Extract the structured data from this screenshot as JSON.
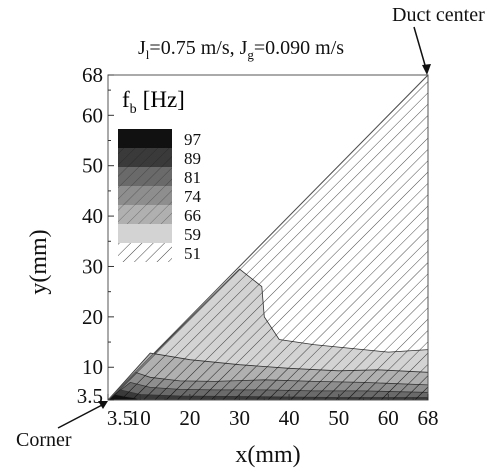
{
  "chart_data": {
    "type": "heatmap",
    "title": {
      "parts": [
        {
          "text": "J",
          "sub": false
        },
        {
          "text": "l",
          "sub": true
        },
        {
          "text": "=0.75 m/s, J",
          "sub": false
        },
        {
          "text": "g",
          "sub": true
        },
        {
          "text": "=0.090 m/s",
          "sub": false
        }
      ]
    },
    "xlabel": "x(mm)",
    "ylabel": "y(mm)",
    "xlim": [
      3.5,
      68
    ],
    "ylim": [
      3.5,
      68
    ],
    "x_ticks": [
      "3.5",
      "10",
      "20",
      "30",
      "40",
      "50",
      "60",
      "68"
    ],
    "x_tick_values": [
      3.5,
      10,
      20,
      30,
      40,
      50,
      60,
      68
    ],
    "y_ticks": [
      "3.5",
      "10",
      "20",
      "30",
      "40",
      "50",
      "60",
      "68"
    ],
    "y_tick_values": [
      3.5,
      10,
      20,
      30,
      40,
      50,
      60,
      68
    ],
    "grid": false,
    "domain_shape": "triangle: region below the diagonal y = x",
    "legend": {
      "title_main": "f",
      "title_sub": "b",
      "title_unit": "[Hz]",
      "position": "top-left",
      "levels": [
        "97",
        "89",
        "81",
        "74",
        "66",
        "59",
        "51"
      ],
      "colors": [
        "#111111",
        "#3a3a3a",
        "#6a6a6a",
        "#8e8e8e",
        "#b0b0b0",
        "#d3d3d3",
        "#ffffff"
      ],
      "hatched": [
        true,
        true,
        true,
        true,
        true,
        false,
        true
      ]
    },
    "contour_bands": [
      {
        "level": "51",
        "region": [
          [
            3.5,
            3.5
          ],
          [
            68,
            3.5
          ],
          [
            68,
            68
          ]
        ]
      },
      {
        "level": "59",
        "region": [
          [
            3.5,
            3.5
          ],
          [
            68,
            3.5
          ],
          [
            68,
            13.5
          ],
          [
            60,
            13
          ],
          [
            55,
            13.5
          ],
          [
            45,
            14.5
          ],
          [
            38,
            15.5
          ],
          [
            35,
            20
          ],
          [
            34.5,
            26
          ],
          [
            30,
            29.5
          ]
        ]
      },
      {
        "level": "66",
        "region": [
          [
            3.5,
            3.5
          ],
          [
            68,
            3.5
          ],
          [
            68,
            9
          ],
          [
            58,
            9.5
          ],
          [
            50,
            9.3
          ],
          [
            40,
            9.8
          ],
          [
            30,
            10.5
          ],
          [
            20,
            11.5
          ],
          [
            14,
            12.5
          ],
          [
            12,
            12.8
          ]
        ]
      },
      {
        "level": "74",
        "region": [
          [
            3.5,
            3.5
          ],
          [
            68,
            3.5
          ],
          [
            68,
            6.5
          ],
          [
            55,
            7
          ],
          [
            45,
            7.2
          ],
          [
            35,
            7.5
          ],
          [
            25,
            7.2
          ],
          [
            18,
            7.3
          ],
          [
            12,
            8
          ],
          [
            9,
            9
          ]
        ]
      },
      {
        "level": "81",
        "region": [
          [
            3.5,
            3.5
          ],
          [
            68,
            3.5
          ],
          [
            68,
            5
          ],
          [
            55,
            5.3
          ],
          [
            45,
            5.3
          ],
          [
            35,
            5.5
          ],
          [
            25,
            5.5
          ],
          [
            18,
            5.6
          ],
          [
            12,
            6
          ],
          [
            8,
            7
          ]
        ]
      },
      {
        "level": "89",
        "region": [
          [
            3.5,
            3.5
          ],
          [
            68,
            3.5
          ],
          [
            68,
            4
          ],
          [
            50,
            4
          ],
          [
            30,
            4.2
          ],
          [
            18,
            4.3
          ],
          [
            10,
            4.6
          ],
          [
            6,
            5.5
          ]
        ]
      },
      {
        "level": "97",
        "region": [
          [
            3.5,
            3.5
          ],
          [
            10,
            3.5
          ],
          [
            9,
            3.9
          ],
          [
            7,
            4.2
          ],
          [
            5,
            4.6
          ]
        ]
      }
    ],
    "annotations": [
      {
        "text": "Duct center",
        "points_to": [
          68,
          68
        ]
      },
      {
        "text": "Corner",
        "points_to": [
          3.5,
          3.5
        ]
      }
    ]
  }
}
